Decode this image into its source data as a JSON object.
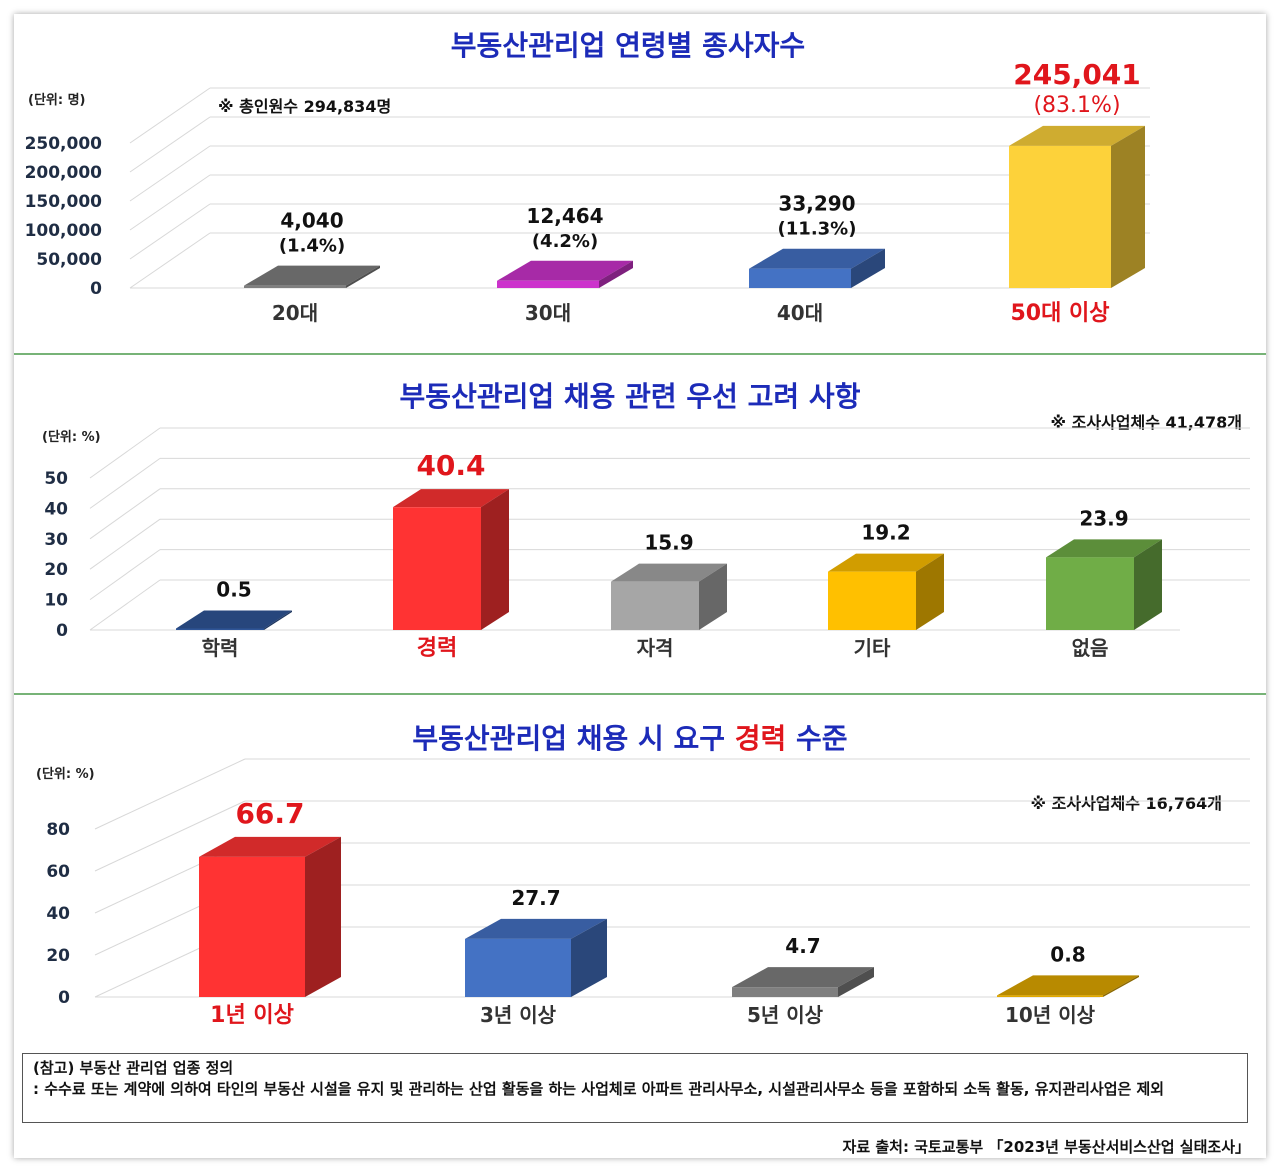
{
  "chart_data": [
    {
      "type": "bar",
      "title": "부동산관리업 연령별 종사자수",
      "unit": "(단위: 명)",
      "note": "※ 총인원수 294,834명",
      "categories": [
        "20대",
        "30대",
        "40대",
        "50대 이상"
      ],
      "values": [
        4040,
        12464,
        33290,
        245041
      ],
      "value_labels": [
        "4,040",
        "12,464",
        "33,290",
        "245,041"
      ],
      "pct_labels": [
        "(1.4%)",
        "(4.2%)",
        "(11.3%)",
        "(83.1%)"
      ],
      "ticks": [
        "0",
        "50,000",
        "100,000",
        "150,000",
        "200,000",
        "250,000"
      ],
      "ylim": [
        0,
        250000
      ],
      "colors": [
        "#7f7f7f",
        "#cc33cc",
        "#4472c4",
        "#fdd23a"
      ],
      "highlight_index": 3
    },
    {
      "type": "bar",
      "title": "부동산관리업 채용 관련 우선 고려 사항",
      "unit": "(단위: %)",
      "note": "※ 조사사업체수 41,478개",
      "categories": [
        "학력",
        "경력",
        "자격",
        "기타",
        "없음"
      ],
      "values": [
        0.5,
        40.4,
        15.9,
        19.2,
        23.9
      ],
      "value_labels": [
        "0.5",
        "40.4",
        "15.9",
        "19.2",
        "23.9"
      ],
      "ticks": [
        "0",
        "10",
        "20",
        "30",
        "40",
        "50"
      ],
      "ylim": [
        0,
        50
      ],
      "colors": [
        "#2f5597",
        "#ff3333",
        "#a6a6a6",
        "#ffc000",
        "#70ad47"
      ],
      "highlight_index": 1
    },
    {
      "type": "bar",
      "title_parts": [
        "부동산관리업 채용 시 요구 ",
        "경력",
        " 수준"
      ],
      "unit": "(단위: %)",
      "note": "※ 조사사업체수 16,764개",
      "categories": [
        "1년 이상",
        "3년 이상",
        "5년 이상",
        "10년 이상"
      ],
      "values": [
        66.7,
        27.7,
        4.7,
        0.8
      ],
      "value_labels": [
        "66.7",
        "27.7",
        "4.7",
        "0.8"
      ],
      "ticks": [
        "0",
        "20",
        "40",
        "60",
        "80"
      ],
      "ylim": [
        0,
        80
      ],
      "colors": [
        "#ff3333",
        "#4472c4",
        "#7f7f7f",
        "#e0a800"
      ],
      "highlight_index": 0
    }
  ],
  "reference": {
    "heading": "(참고) 부동산 관리업 업종 정의",
    "body": ": 수수료 또는 계약에 의하여 타인의 부동산 시설을 유지 및 관리하는 산업 활동을 하는 사업체로 아파트 관리사무소, 시설관리사무소 등을 포함하되 소독 활동, 유지관리사업은 제외"
  },
  "source": "자료 출처: 국토교통부 「2023년 부동산서비스산업 실태조사」"
}
